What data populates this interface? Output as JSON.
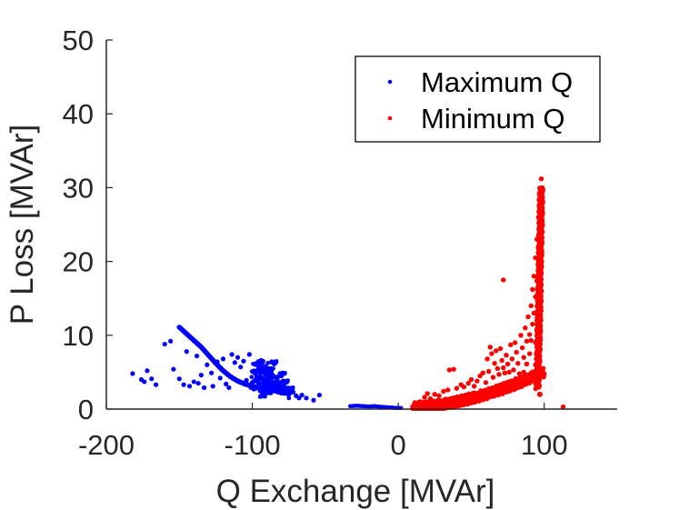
{
  "chart_data": {
    "type": "scatter",
    "title": "",
    "xlabel": "Q Exchange [MVAr]",
    "ylabel": "P Loss [MVAr]",
    "xlim": [
      -200,
      150
    ],
    "ylim": [
      0,
      50
    ],
    "xticks": [
      -200,
      -100,
      0,
      100
    ],
    "xtick_labels": [
      "-200",
      "-100",
      "0",
      "100"
    ],
    "yticks": [
      0,
      10,
      20,
      30,
      40,
      50
    ],
    "ytick_labels": [
      "0",
      "10",
      "20",
      "30",
      "40",
      "50"
    ],
    "grid": false,
    "legend": {
      "placement": "top-right",
      "entries": [
        "Maximum Q",
        "Minimum Q"
      ]
    },
    "colors": {
      "axis": "#262626",
      "maximum_q": "#0000ff",
      "minimum_q": "#ff0000",
      "legend_border": "#262626"
    },
    "series": [
      {
        "name": "Maximum Q",
        "color": "#0000ff",
        "points": [
          [
            -182,
            4.8
          ],
          [
            -176,
            4.0
          ],
          [
            -174,
            3.7
          ],
          [
            -172,
            5.2
          ],
          [
            -169,
            4.1
          ],
          [
            -166,
            3.3
          ],
          [
            -160,
            8.8
          ],
          [
            -156,
            9.2
          ],
          [
            -154,
            5.4
          ],
          [
            -150,
            4.1
          ],
          [
            -147,
            3.3
          ],
          [
            -145,
            7.8
          ],
          [
            -143,
            3.1
          ],
          [
            -140,
            3.7
          ],
          [
            -138,
            7.2
          ],
          [
            -137,
            3.5
          ],
          [
            -135,
            4.6
          ],
          [
            -133,
            2.9
          ],
          [
            -131,
            6.0
          ],
          [
            -128,
            4.9
          ],
          [
            -127,
            3.1
          ],
          [
            -124,
            6.4
          ],
          [
            -122,
            4.2
          ],
          [
            -120,
            6.8
          ],
          [
            -118,
            3.4
          ],
          [
            -116,
            2.9
          ],
          [
            -114,
            7.4
          ],
          [
            -112,
            6.3
          ],
          [
            -110,
            7.0
          ],
          [
            -108,
            5.7
          ],
          [
            -106,
            6.5
          ],
          [
            -104,
            3.9
          ],
          [
            -102,
            7.4
          ],
          [
            -100,
            3.6
          ],
          [
            -98,
            4.8
          ],
          [
            -97,
            6.1
          ],
          [
            -96,
            5.4
          ],
          [
            -95,
            4.1
          ],
          [
            -94,
            6.6
          ],
          [
            -93,
            5.0
          ],
          [
            -92,
            3.3
          ],
          [
            -91,
            5.8
          ],
          [
            -90,
            4.4
          ],
          [
            -89,
            2.6
          ],
          [
            -88,
            5.1
          ],
          [
            -87,
            3.6
          ],
          [
            -86,
            4.6
          ],
          [
            -85,
            6.1
          ],
          [
            -84,
            3.0
          ],
          [
            -83,
            4.0
          ],
          [
            -82,
            2.5
          ],
          [
            -81,
            3.4
          ],
          [
            -80,
            4.5
          ],
          [
            -79,
            2.2
          ],
          [
            -78,
            3.0
          ],
          [
            -77,
            3.6
          ],
          [
            -76,
            2.6
          ],
          [
            -75,
            1.9
          ],
          [
            -74,
            2.8
          ],
          [
            -72,
            2.3
          ],
          [
            -70,
            1.8
          ],
          [
            -68,
            1.5
          ],
          [
            -66,
            1.9
          ],
          [
            -63,
            1.5
          ],
          [
            -58,
            1.2
          ],
          [
            -54,
            1.9
          ],
          [
            -96,
            3.2
          ],
          [
            -94,
            2.8
          ],
          [
            -92,
            2.4
          ],
          [
            -90,
            3.0
          ],
          [
            -88,
            2.2
          ],
          [
            -86,
            3.4
          ],
          [
            -100,
            5.1
          ],
          [
            -99,
            2.7
          ],
          [
            -97,
            3.9
          ],
          [
            -93,
            2.1
          ],
          [
            -91,
            3.9
          ],
          [
            -89,
            5.3
          ]
        ],
        "curve": [
          [
            -150,
            11.1
          ],
          [
            -145,
            10.2
          ],
          [
            -140,
            9.3
          ],
          [
            -135,
            8.4
          ],
          [
            -130,
            7.3
          ],
          [
            -125,
            6.2
          ],
          [
            -120,
            5.2
          ],
          [
            -115,
            4.4
          ],
          [
            -110,
            3.8
          ],
          [
            -105,
            3.4
          ],
          [
            -100,
            3.1
          ],
          [
            -95,
            2.9
          ],
          [
            -90,
            2.7
          ],
          [
            -85,
            2.5
          ],
          [
            -80,
            2.2
          ]
        ],
        "near_zero_segment": [
          [
            -33,
            0.4
          ],
          [
            -28,
            0.45
          ],
          [
            -24,
            0.4
          ],
          [
            -20,
            0.35
          ],
          [
            -16,
            0.4
          ],
          [
            -12,
            0.3
          ],
          [
            -8,
            0.25
          ],
          [
            -4,
            0.2
          ],
          [
            -1,
            0.15
          ],
          [
            2,
            0.15
          ]
        ]
      },
      {
        "name": "Minimum Q",
        "color": "#ff0000",
        "points": [
          [
            12,
            0.6
          ],
          [
            15,
            1.0
          ],
          [
            18,
            1.6
          ],
          [
            20,
            2.1
          ],
          [
            22,
            1.4
          ],
          [
            25,
            2.0
          ],
          [
            28,
            1.8
          ],
          [
            31,
            2.4
          ],
          [
            34,
            2.6
          ],
          [
            35,
            5.3
          ],
          [
            38,
            5.4
          ],
          [
            40,
            2.8
          ],
          [
            43,
            3.3
          ],
          [
            45,
            3.0
          ],
          [
            48,
            3.5
          ],
          [
            50,
            4.0
          ],
          [
            52,
            3.1
          ],
          [
            54,
            3.8
          ],
          [
            56,
            4.5
          ],
          [
            58,
            4.9
          ],
          [
            60,
            3.6
          ],
          [
            61,
            6.8
          ],
          [
            62,
            5.1
          ],
          [
            63,
            8.4
          ],
          [
            64,
            7.5
          ],
          [
            65,
            4.3
          ],
          [
            66,
            6.2
          ],
          [
            67,
            7.9
          ],
          [
            68,
            5.5
          ],
          [
            69,
            4.7
          ],
          [
            70,
            8.2
          ],
          [
            71,
            6.6
          ],
          [
            72,
            17.5
          ],
          [
            72,
            5.6
          ],
          [
            73,
            4.9
          ],
          [
            74,
            7.3
          ],
          [
            75,
            6.1
          ],
          [
            76,
            5.0
          ],
          [
            77,
            8.7
          ],
          [
            78,
            6.8
          ],
          [
            79,
            5.3
          ],
          [
            80,
            9.0
          ],
          [
            81,
            7.7
          ],
          [
            82,
            6.2
          ],
          [
            83,
            4.8
          ],
          [
            84,
            10.0
          ],
          [
            85,
            8.3
          ],
          [
            86,
            7.0
          ],
          [
            87,
            11.0
          ],
          [
            88,
            9.2
          ],
          [
            88,
            6.1
          ],
          [
            89,
            12.5
          ],
          [
            90,
            10.1
          ],
          [
            90,
            7.5
          ],
          [
            91,
            14.0
          ],
          [
            91,
            9.3
          ],
          [
            92,
            16.2
          ],
          [
            92,
            11.5
          ],
          [
            93,
            18.0
          ],
          [
            93,
            13.0
          ],
          [
            94,
            20.5
          ],
          [
            94,
            15.2
          ],
          [
            95,
            23.0
          ],
          [
            95,
            17.4
          ],
          [
            96,
            26.0
          ],
          [
            96,
            20.0
          ],
          [
            97,
            29.0
          ],
          [
            97,
            22.5
          ],
          [
            98,
            31.2
          ],
          [
            98,
            24.0
          ],
          [
            98,
            27.5
          ],
          [
            113,
            0.3
          ],
          [
            94,
            9.0
          ],
          [
            95,
            12.0
          ],
          [
            96,
            14.0
          ],
          [
            97,
            16.0
          ],
          [
            96,
            8.0
          ],
          [
            97,
            10.0
          ],
          [
            86,
            5.0
          ],
          [
            88,
            4.0
          ],
          [
            90,
            4.5
          ],
          [
            92,
            5.0
          ],
          [
            94,
            6.0
          ],
          [
            96,
            5.5
          ]
        ],
        "base_band": [
          [
            10,
            0.3
          ],
          [
            20,
            0.6
          ],
          [
            30,
            0.9
          ],
          [
            40,
            1.3
          ],
          [
            50,
            1.7
          ],
          [
            60,
            2.1
          ],
          [
            70,
            2.6
          ],
          [
            80,
            3.2
          ],
          [
            90,
            4.0
          ],
          [
            97,
            5.2
          ]
        ],
        "vertical_band": [
          [
            97,
            2.0
          ],
          [
            97,
            5.0
          ],
          [
            97,
            8.0
          ],
          [
            97.5,
            12.0
          ],
          [
            98,
            16.0
          ],
          [
            98,
            20.0
          ],
          [
            98.5,
            24.0
          ],
          [
            98.5,
            28.0
          ]
        ]
      }
    ]
  }
}
